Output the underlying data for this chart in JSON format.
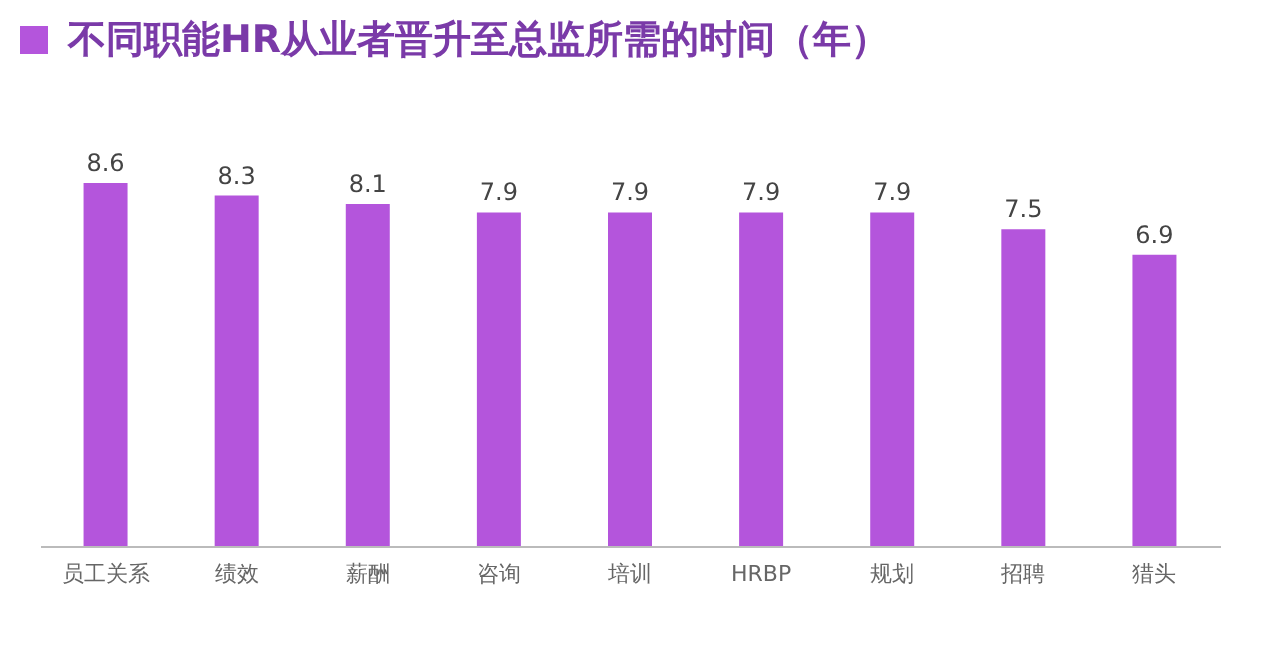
{
  "chart_data": {
    "type": "bar",
    "title": "不同职能HR从业者晋升至总监所需的时间（年）",
    "categories": [
      "员工关系",
      "绩效",
      "薪酬",
      "咨询",
      "培训",
      "HRBP",
      "规划",
      "招聘",
      "猎头"
    ],
    "values": [
      8.6,
      8.3,
      8.1,
      7.9,
      7.9,
      7.9,
      7.9,
      7.5,
      6.9
    ],
    "color": "#b455dc",
    "data_labels": true
  }
}
